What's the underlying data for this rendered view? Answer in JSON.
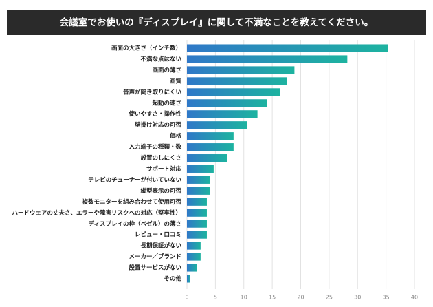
{
  "chart_data": {
    "type": "bar",
    "orientation": "horizontal",
    "title": "会議室でお使いの『ディスプレイ』に関して不満なことを教えてください。",
    "categories": [
      "画面の大きさ（インチ数）",
      "不満な点はない",
      "画面の薄さ",
      "画質",
      "音声が聞き取りにくい",
      "起動の速さ",
      "使いやすさ・操作性",
      "壁掛け対応の可否",
      "価格",
      "入力端子の種類・数",
      "設置のしにくさ",
      "サポート対応",
      "テレビのチューナーが付いていない",
      "縦型表示の可否",
      "複数モニターを組み合わせて使用可否",
      "ハードウェアの丈夫さ、エラーや障害リスクへの対応（堅牢性）",
      "ディスプレイの枠（ベゼル）の薄さ",
      "レビュー・口コミ",
      "長期保証がない",
      "メーカー／ブランド",
      "設置サービスがない",
      "その他"
    ],
    "values": [
      35.3,
      28.2,
      18.9,
      17.6,
      16.4,
      14.1,
      12.4,
      10.6,
      8.2,
      8.2,
      7.1,
      4.7,
      4.1,
      4.1,
      3.5,
      3.5,
      3.5,
      3.5,
      2.4,
      2.4,
      1.8,
      0.6
    ],
    "colors": [
      "#2f78c8",
      "#1db3a0"
    ],
    "xlim": [
      0,
      40
    ],
    "xticks": [
      0,
      5,
      10,
      15,
      20,
      25,
      30,
      35,
      40
    ],
    "grid": true
  }
}
